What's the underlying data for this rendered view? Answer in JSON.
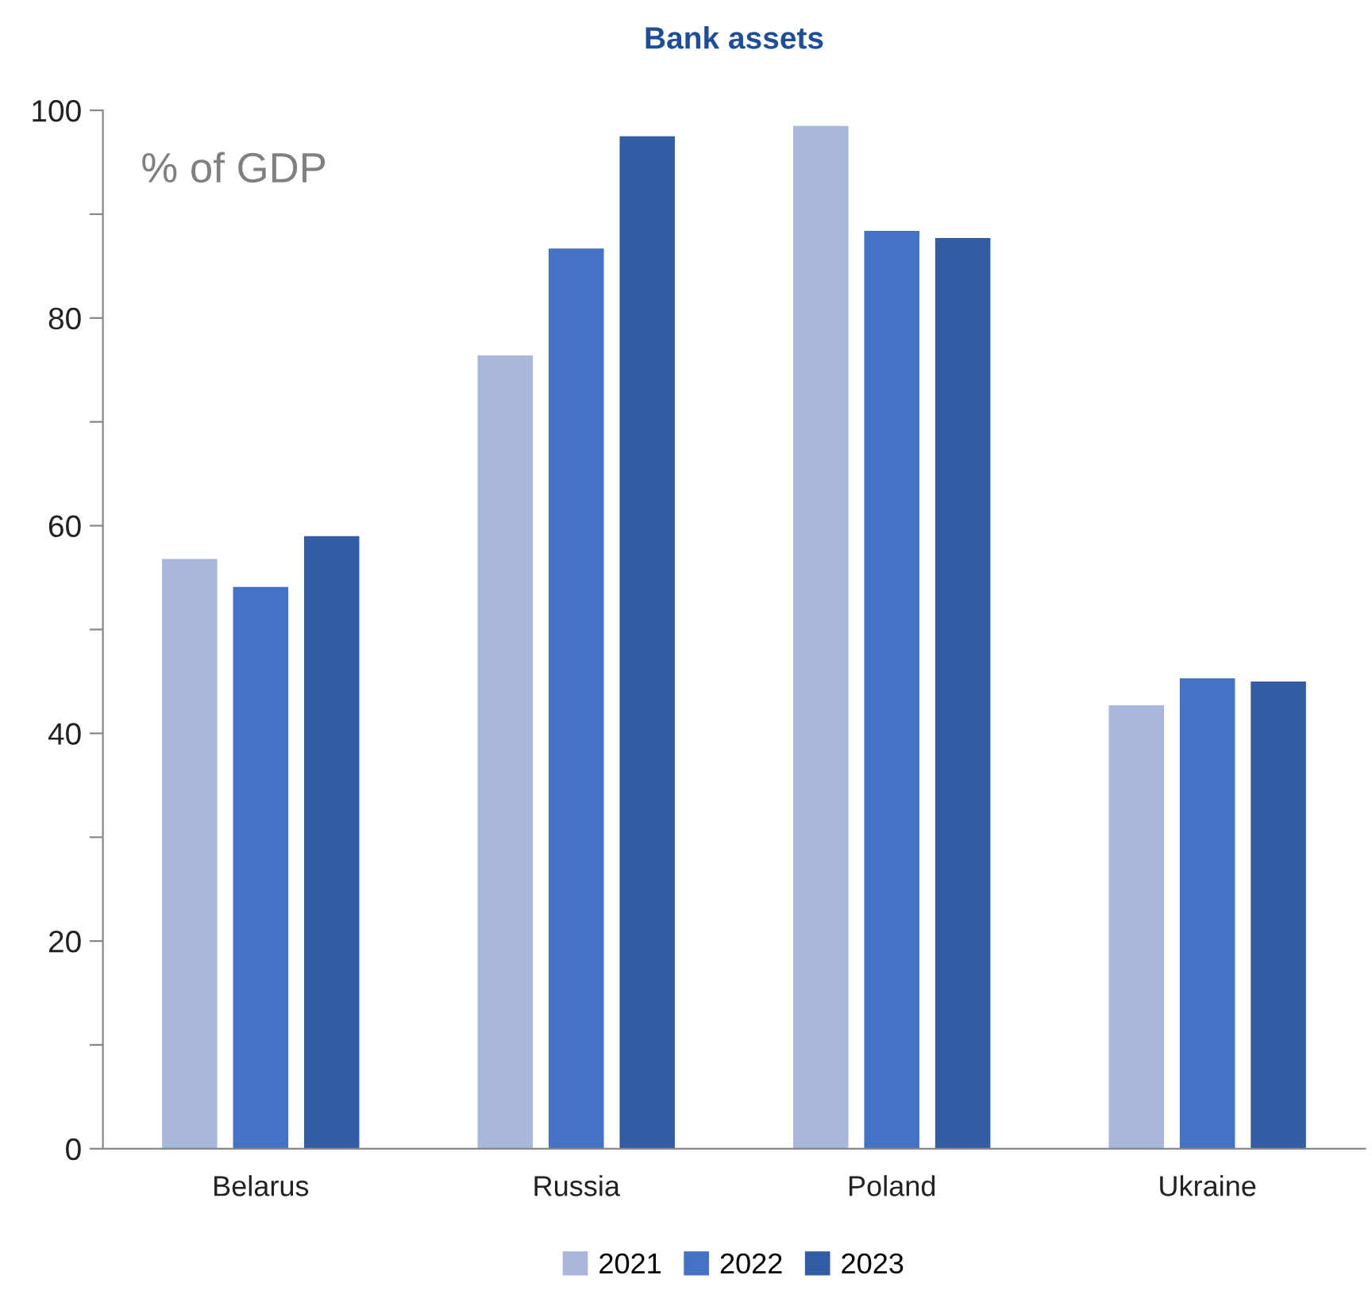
{
  "chart_data": {
    "type": "bar",
    "title": "Bank assets",
    "categories": [
      "Belarus",
      "Russia",
      "Poland",
      "Ukraine"
    ],
    "series": [
      {
        "name": "2021",
        "color": "#a9b7dc",
        "values": [
          56.8,
          76.4,
          98.5,
          42.7
        ]
      },
      {
        "name": "2022",
        "color": "#4472c4",
        "values": [
          54.1,
          86.7,
          88.4,
          45.3
        ]
      },
      {
        "name": "2023",
        "color": "#345ca2",
        "values": [
          59.0,
          97.5,
          87.7,
          45.0
        ]
      }
    ],
    "ylim": [
      0,
      100
    ],
    "yticks": [
      0,
      {
        "value": 10,
        "label": null
      },
      20,
      {
        "value": 30,
        "label": null
      },
      40,
      {
        "value": 50,
        "label": null
      },
      60,
      {
        "value": 70,
        "label": null
      },
      80,
      {
        "value": 90,
        "label": null
      },
      100
    ],
    "annotations": [
      "% of GDP"
    ],
    "grid": false,
    "legend": "bottom"
  }
}
